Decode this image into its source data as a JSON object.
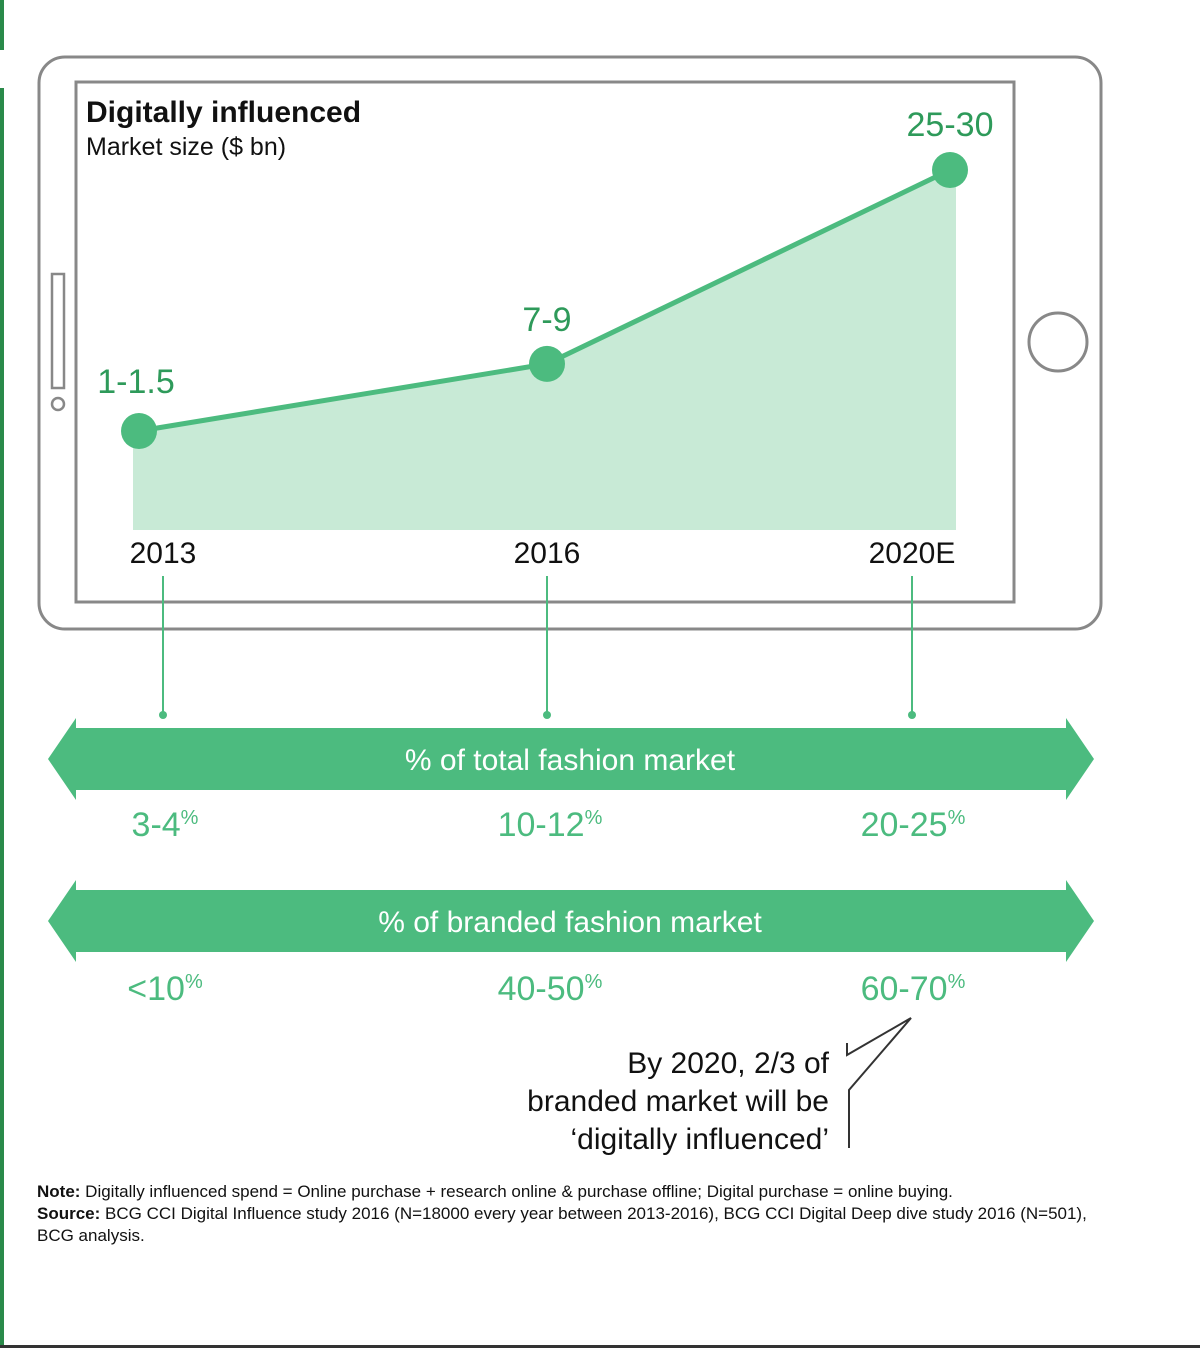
{
  "chart_data": {
    "type": "area",
    "title": "Digitally influenced",
    "subtitle": "Market size ($ bn)",
    "categories": [
      "2013",
      "2016",
      "2020E"
    ],
    "values": [
      1.25,
      8,
      27.5
    ],
    "value_labels": [
      "1-1.5",
      "7-9",
      "25-30"
    ],
    "color": "#4cbb7f",
    "fill_color": "#c8ead6"
  },
  "bands": [
    {
      "label": "% of total fashion market",
      "values": [
        {
          "num": "3-4",
          "unit": "%"
        },
        {
          "num": "10-12",
          "unit": "%"
        },
        {
          "num": "20-25",
          "unit": "%"
        }
      ]
    },
    {
      "label": "% of branded fashion market",
      "values": [
        {
          "num": "<10",
          "unit": "%"
        },
        {
          "num": "40-50",
          "unit": "%"
        },
        {
          "num": "60-70",
          "unit": "%"
        }
      ]
    }
  ],
  "callout": {
    "lines": [
      "By 2020, 2/3 of",
      "branded market will be",
      "‘digitally influenced’"
    ]
  },
  "notes": {
    "note_label": "Note:",
    "note_text": " Digitally influenced spend = Online purchase + research online & purchase offline; Digital purchase = online buying.",
    "source_label": "Source:",
    "source_text": " BCG CCI Digital Influence study 2016 (N=18000 every year between 2013-2016), BCG CCI Digital Deep dive study 2016 (N=501), BCG analysis."
  },
  "colors": {
    "accent": "#4cbb7f",
    "band": "#4cbb7f",
    "text": "#111111"
  }
}
